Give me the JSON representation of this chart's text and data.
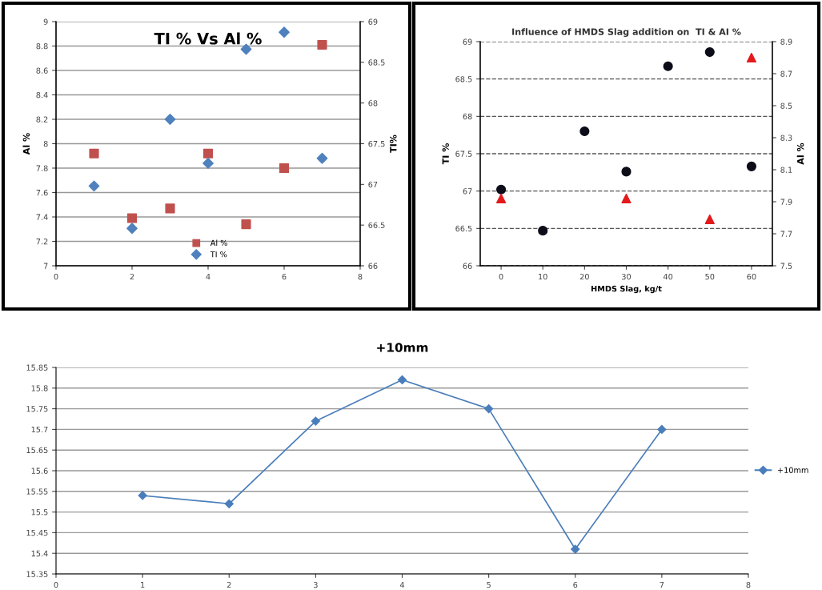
{
  "chart_data": [
    {
      "type": "scatter",
      "title": "TI % Vs Al %",
      "ylabel": "Al %",
      "y2label": "TI%",
      "x": [
        1,
        2,
        3,
        4,
        5,
        6,
        7
      ],
      "xlim": [
        0,
        8
      ],
      "xticks": [
        0,
        2,
        4,
        6,
        8
      ],
      "ylim": [
        7,
        9
      ],
      "yticks": [
        7,
        7.2,
        7.4,
        7.6,
        7.8,
        8,
        8.2,
        8.4,
        8.6,
        8.8,
        9
      ],
      "y2lim": [
        66,
        69
      ],
      "y2ticks": [
        66,
        66.5,
        67,
        67.5,
        68,
        68.5,
        69
      ],
      "grid": "y",
      "legend": "bottom",
      "series": [
        {
          "name": "Al %",
          "color": "#c0504d",
          "marker": "square",
          "values": [
            7.92,
            7.39,
            7.47,
            7.92,
            7.34,
            7.8,
            8.81
          ]
        },
        {
          "name": "TI %",
          "color": "#4f81bd",
          "marker": "diamond",
          "axis": "y2",
          "values": [
            66.98,
            66.46,
            67.8,
            67.26,
            68.66,
            68.87,
            67.32
          ]
        }
      ]
    },
    {
      "type": "scatter",
      "title": "Influence of HMDS Slag addition on  TI & AI %",
      "xlabel": "HMDS Slag, kg/t",
      "ylabel": "TI %",
      "y2label": "Al %",
      "categories": [
        "0",
        "10",
        "20",
        "30",
        "40",
        "50",
        "60"
      ],
      "ylim": [
        66,
        69
      ],
      "yticks": [
        66,
        66.5,
        67,
        67.5,
        68,
        68.5,
        69
      ],
      "y2lim": [
        7.5,
        8.9
      ],
      "y2ticks": [
        7.5,
        7.7,
        7.9,
        8.1,
        8.3,
        8.5,
        8.7,
        8.9
      ],
      "grid": "y",
      "line_style": "dashed",
      "series": [
        {
          "color": "#0d0d1a",
          "marker": "circle",
          "values": [
            67.02,
            66.47,
            67.8,
            67.26,
            68.67,
            68.86,
            67.33
          ]
        },
        {
          "color": "#e31a1c",
          "marker": "triangle",
          "axis": "y2",
          "values": [
            7.92,
            null,
            null,
            7.92,
            null,
            7.79,
            8.8
          ]
        }
      ]
    },
    {
      "type": "line",
      "title": "+10mm",
      "x": [
        1,
        2,
        3,
        4,
        5,
        6,
        7
      ],
      "xlim": [
        0,
        8
      ],
      "xticks": [
        0,
        1,
        2,
        3,
        4,
        5,
        6,
        7,
        8
      ],
      "ylim": [
        15.35,
        15.85
      ],
      "yticks": [
        15.35,
        15.4,
        15.45,
        15.5,
        15.55,
        15.6,
        15.65,
        15.7,
        15.75,
        15.8,
        15.85
      ],
      "grid": "y",
      "legend": "right",
      "marker": "diamond",
      "series": [
        {
          "name": "+10mm",
          "color": "#4a7ebb",
          "values": [
            15.54,
            15.52,
            15.72,
            15.82,
            15.75,
            15.41,
            15.7
          ]
        }
      ]
    }
  ]
}
